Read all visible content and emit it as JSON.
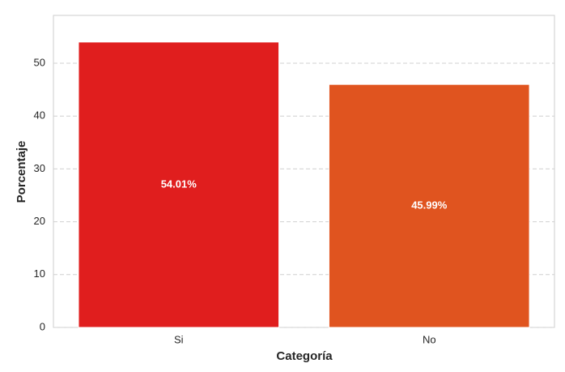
{
  "chart_data": {
    "type": "bar",
    "categories": [
      "Si",
      "No"
    ],
    "values": [
      54.01,
      45.99
    ],
    "value_labels": [
      "54.01%",
      "45.99%"
    ],
    "colors": [
      "#e01e1e",
      "#e0541f"
    ],
    "xlabel": "Categoría",
    "ylabel": "Porcentaje",
    "ylim": [
      0,
      59.05
    ],
    "yticks": [
      0,
      10,
      20,
      30,
      40,
      50
    ],
    "grid": true
  }
}
